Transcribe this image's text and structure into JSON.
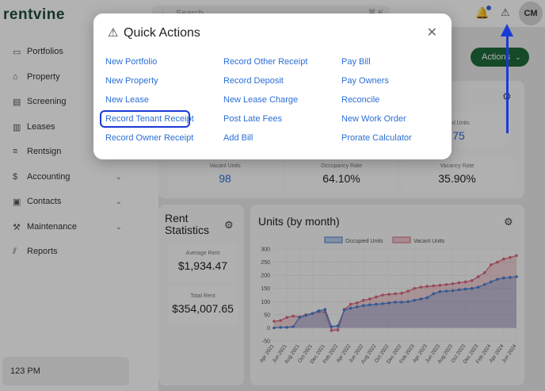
{
  "app": {
    "logo": "rentvine"
  },
  "topbar": {
    "search_placeholder": "Search",
    "shortcut": "⌘ K",
    "avatar_initials": "CM"
  },
  "sidebar": {
    "items": [
      {
        "label": "Portfolios",
        "icon": "folder-icon"
      },
      {
        "label": "Property",
        "icon": "building-icon"
      },
      {
        "label": "Screening",
        "icon": "document-search-icon"
      },
      {
        "label": "Leases",
        "icon": "lease-icon"
      },
      {
        "label": "Rentsign",
        "icon": "signature-icon"
      },
      {
        "label": "Accounting",
        "icon": "dollar-icon"
      },
      {
        "label": "Contacts",
        "icon": "address-book-icon"
      },
      {
        "label": "Maintenance",
        "icon": "wrench-icon"
      },
      {
        "label": "Reports",
        "icon": "chart-icon"
      }
    ],
    "footer_time": "123 PM"
  },
  "header": {
    "actions_label": "Actions"
  },
  "occupancy": {
    "partial_label": "ied Units",
    "partial_value": "75",
    "vacant_label": "Vacant Units",
    "vacant_value": "98",
    "occupancy_label": "Occupancy Rate",
    "occupancy_value": "64.10%",
    "vacancy_label": "Vacancy Rate",
    "vacancy_value": "35.90%"
  },
  "rent_stats": {
    "title": "Rent Statistics",
    "avg_label": "Average Rent",
    "avg_value": "$1,934.47",
    "total_label": "Total Rent",
    "total_value": "$354,007.65"
  },
  "units_chart": {
    "title": "Units (by month)",
    "legend": [
      "Occupied Units",
      "Vacant Units"
    ],
    "y_ticks": [
      "300",
      "250",
      "200",
      "150",
      "100",
      "50",
      "0",
      "-50"
    ],
    "x_ticks": [
      "Apr 2021",
      "Jun 2021",
      "Aug 2021",
      "Oct 2021",
      "Dec 2021",
      "Feb 2022",
      "Apr 2022",
      "Jun 2022",
      "Aug 2022",
      "Oct 2022",
      "Dec 2022",
      "Feb 2023",
      "Apr 2023",
      "Jun 2023",
      "Aug 2023",
      "Oct 2023",
      "Dec 2023",
      "Feb 2024",
      "Apr 2024",
      "Jun 2024"
    ]
  },
  "quick_actions": {
    "title": "Quick Actions",
    "columns": [
      [
        "New Portfolio",
        "New Property",
        "New Lease",
        "Record Tenant Receipt",
        "Record Owner Receipt"
      ],
      [
        "Record Other Receipt",
        "Record Deposit",
        "New Lease Charge",
        "Post Late Fees",
        "Add Bill"
      ],
      [
        "Pay Bill",
        "Pay Owners",
        "Reconcile",
        "New Work Order",
        "Prorate Calculator"
      ]
    ]
  },
  "chart_data": {
    "type": "area",
    "title": "Units (by month)",
    "ylim": [
      -50,
      300
    ],
    "legend": "top",
    "grid": true,
    "x": [
      "Apr 2021",
      "May 2021",
      "Jun 2021",
      "Jul 2021",
      "Aug 2021",
      "Sep 2021",
      "Oct 2021",
      "Nov 2021",
      "Dec 2021",
      "Jan 2022",
      "Feb 2022",
      "Mar 2022",
      "Apr 2022",
      "May 2022",
      "Jun 2022",
      "Jul 2022",
      "Aug 2022",
      "Sep 2022",
      "Oct 2022",
      "Nov 2022",
      "Dec 2022",
      "Jan 2023",
      "Feb 2023",
      "Mar 2023",
      "Apr 2023",
      "May 2023",
      "Jun 2023",
      "Jul 2023",
      "Aug 2023",
      "Sep 2023",
      "Oct 2023",
      "Nov 2023",
      "Dec 2023",
      "Jan 2024",
      "Feb 2024",
      "Mar 2024",
      "Apr 2024",
      "May 2024",
      "Jun 2024"
    ],
    "series": [
      {
        "name": "Occupied Units",
        "color": "#4a7fd1",
        "values": [
          0,
          2,
          2,
          5,
          40,
          48,
          55,
          65,
          70,
          5,
          8,
          68,
          75,
          80,
          85,
          88,
          90,
          92,
          95,
          98,
          98,
          100,
          105,
          110,
          115,
          130,
          138,
          140,
          142,
          145,
          148,
          150,
          155,
          165,
          175,
          185,
          190,
          192,
          195
        ]
      },
      {
        "name": "Vacant Units",
        "color": "#d9677d",
        "values": [
          25,
          28,
          40,
          45,
          42,
          50,
          55,
          62,
          60,
          -10,
          -8,
          70,
          90,
          95,
          105,
          110,
          118,
          125,
          128,
          130,
          132,
          140,
          150,
          155,
          158,
          160,
          162,
          165,
          168,
          172,
          175,
          180,
          195,
          210,
          240,
          250,
          262,
          268,
          275
        ]
      }
    ]
  },
  "colors": {
    "brand": "#1f6b3a",
    "link": "#2b6fd6",
    "annotation": "#1a3ad6"
  }
}
